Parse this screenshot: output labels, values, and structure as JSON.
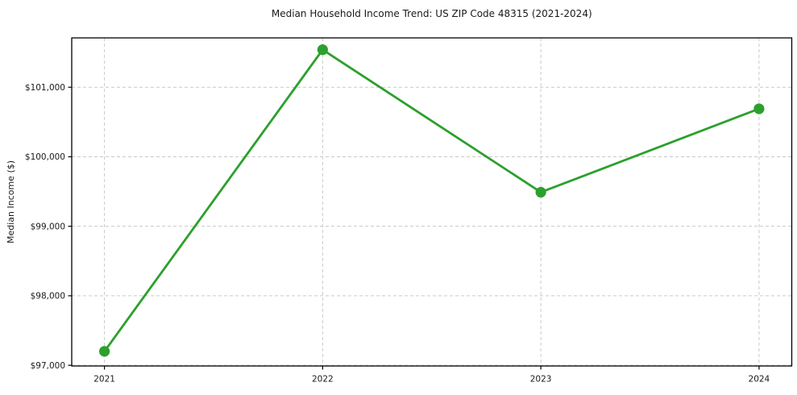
{
  "chart_data": {
    "type": "line",
    "title": "Median Household Income Trend: US ZIP Code 48315 (2021-2024)",
    "xlabel": "",
    "ylabel": "Median Income ($)",
    "categories": [
      "2021",
      "2022",
      "2023",
      "2024"
    ],
    "values": [
      97200,
      101540,
      99490,
      100690
    ],
    "y_ticks": [
      {
        "value": 97000,
        "label": "$97,000"
      },
      {
        "value": 98000,
        "label": "$98,000"
      },
      {
        "value": 99000,
        "label": "$99,000"
      },
      {
        "value": 100000,
        "label": "$100,000"
      },
      {
        "value": 101000,
        "label": "$101,000"
      }
    ],
    "ylim": [
      96990,
      101710
    ],
    "xlim": [
      -0.15,
      3.15
    ],
    "grid": {
      "visible": true,
      "linestyle": "dashed",
      "color": "#c9c9c9"
    },
    "legend": "none",
    "line_color": "#2ca02c",
    "marker_color": "#2ca02c",
    "marker_shape": "circle",
    "axis_color": "#000000",
    "text_color": "#1a1a1a",
    "background": "#ffffff"
  }
}
